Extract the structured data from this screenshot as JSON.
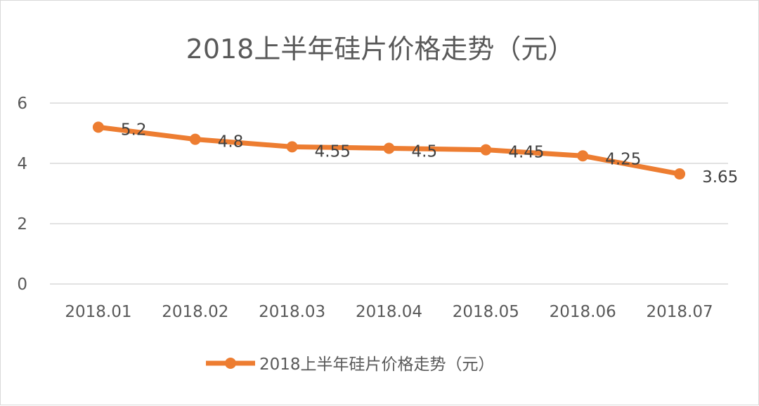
{
  "chart_data": {
    "type": "line",
    "title": "2018上半年硅片价格走势（元）",
    "categories": [
      "2018.01",
      "2018.02",
      "2018.03",
      "2018.04",
      "2018.05",
      "2018.06",
      "2018.07"
    ],
    "series": [
      {
        "name": "2018上半年硅片价格走势（元）",
        "values": [
          5.2,
          4.8,
          4.55,
          4.5,
          4.45,
          4.25,
          3.65
        ],
        "color": "#ED7D31"
      }
    ],
    "data_labels": [
      "5.2",
      "4.8",
      "4.55",
      "4.5",
      "4.45",
      "4.25",
      "3.65"
    ],
    "yticks": [
      0,
      2,
      4,
      6
    ],
    "ylim": [
      0,
      6
    ],
    "grid": true,
    "legend_position": "bottom",
    "gridline_color": "#d9d9d9"
  }
}
